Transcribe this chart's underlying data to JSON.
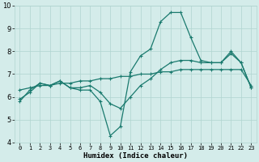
{
  "xlabel": "Humidex (Indice chaleur)",
  "x": [
    0,
    1,
    2,
    3,
    4,
    5,
    6,
    7,
    8,
    9,
    10,
    11,
    12,
    13,
    14,
    15,
    16,
    17,
    18,
    19,
    20,
    21,
    22,
    23
  ],
  "line1": [
    5.8,
    6.3,
    6.6,
    6.5,
    6.7,
    6.4,
    6.4,
    6.5,
    6.2,
    5.7,
    5.5,
    6.0,
    6.5,
    6.8,
    7.2,
    7.5,
    7.6,
    7.6,
    7.5,
    7.5,
    7.5,
    7.9,
    7.5,
    6.4
  ],
  "line2": [
    5.9,
    6.2,
    6.6,
    6.5,
    6.7,
    6.4,
    6.3,
    6.3,
    5.8,
    4.3,
    4.7,
    7.1,
    7.8,
    8.1,
    9.3,
    9.7,
    9.7,
    8.6,
    7.6,
    7.5,
    7.5,
    8.0,
    7.5,
    6.4
  ],
  "line3": [
    6.3,
    6.4,
    6.5,
    6.5,
    6.6,
    6.6,
    6.7,
    6.7,
    6.8,
    6.8,
    6.9,
    6.9,
    7.0,
    7.0,
    7.1,
    7.1,
    7.2,
    7.2,
    7.2,
    7.2,
    7.2,
    7.2,
    7.2,
    6.5
  ],
  "line_color": "#1a7a6e",
  "bg_color": "#d4ecea",
  "grid_color": "#b0d4d0",
  "ylim": [
    4,
    10
  ],
  "yticks": [
    4,
    5,
    6,
    7,
    8,
    9,
    10
  ],
  "marker": "+",
  "markersize": 3.5,
  "linewidth": 0.9
}
